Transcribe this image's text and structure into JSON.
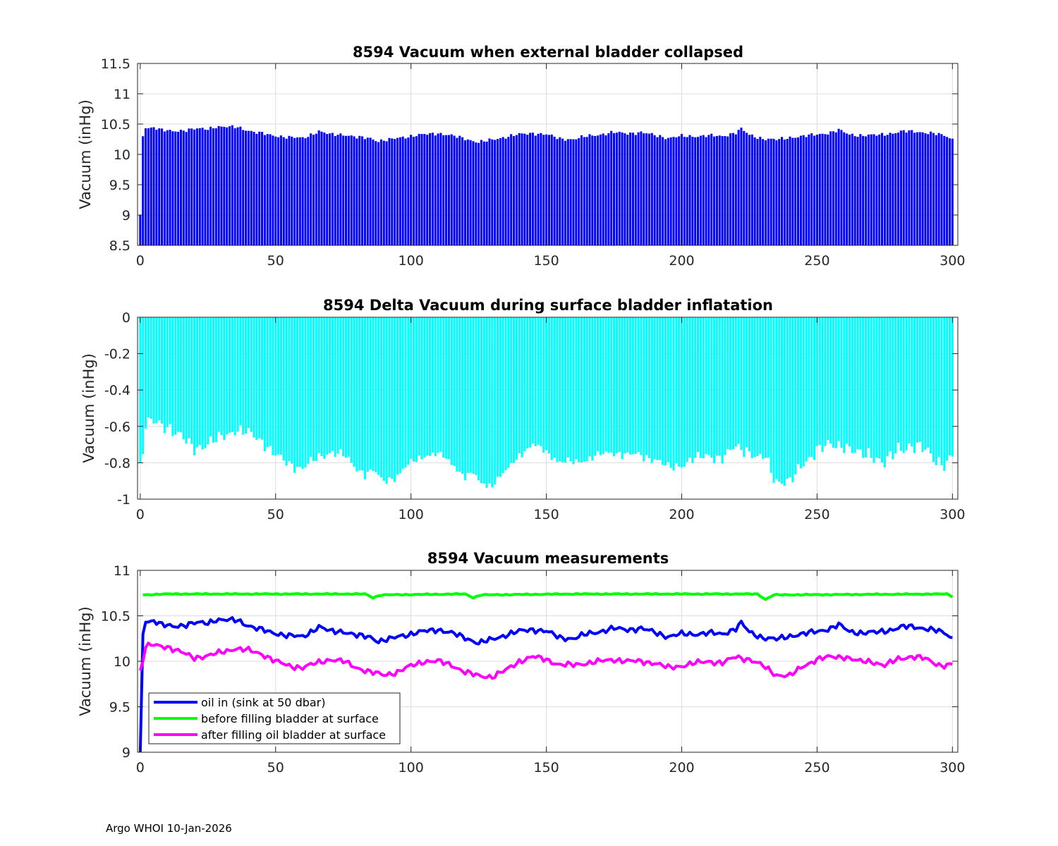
{
  "footer": "Argo WHOI 10-Jan-2026",
  "colors": {
    "bars_top": "#0000ff",
    "bars_mid": "#00ffff",
    "oil_in": "#0000ff",
    "before_fill": "#00ff00",
    "after_fill": "#ff00ff",
    "grid": "#dcdcdc",
    "axis": "#262626"
  },
  "chart_data": [
    {
      "type": "bar",
      "title": "8594 Vacuum when external bladder collapsed",
      "xlabel": "",
      "ylabel": "Vacuum (inHg)",
      "xlim": [
        -1,
        302
      ],
      "ylim": [
        8.5,
        11.5
      ],
      "xticks": [
        0,
        50,
        100,
        150,
        200,
        250,
        300
      ],
      "yticks": [
        8.5,
        9,
        9.5,
        10,
        10.5,
        11,
        11.5
      ],
      "ytick_labels": [
        "8.5",
        "9",
        "9.5",
        "10",
        "10.5",
        "11",
        "11.5"
      ],
      "grid": true,
      "n_points": 301,
      "series_key": "oil_in",
      "color_key": "bars_top"
    },
    {
      "type": "bar",
      "title": "8594 Delta Vacuum during surface bladder inflatation",
      "xlabel": "",
      "ylabel": "Vacuum (inHg)",
      "xlim": [
        -1,
        302
      ],
      "ylim": [
        -1,
        0
      ],
      "xticks": [
        0,
        50,
        100,
        150,
        200,
        250,
        300
      ],
      "yticks": [
        -1,
        -0.8,
        -0.6,
        -0.4,
        -0.2,
        0
      ],
      "ytick_labels": [
        "-1",
        "-0.8",
        "-0.6",
        "-0.4",
        "-0.2",
        "0"
      ],
      "grid": true,
      "n_points": 301,
      "values_note": "after filling minus before filling (approx. -0.55 to -0.95)",
      "color_key": "bars_mid"
    },
    {
      "type": "line",
      "title": "8594 Vacuum measurements",
      "xlabel": "",
      "ylabel": "Vacuum (inHg)",
      "xlim": [
        -1,
        302
      ],
      "ylim": [
        9,
        11
      ],
      "xticks": [
        0,
        50,
        100,
        150,
        200,
        250,
        300
      ],
      "yticks": [
        9,
        9.5,
        10,
        10.5,
        11
      ],
      "ytick_labels": [
        "9",
        "9.5",
        "10",
        "10.5",
        "11"
      ],
      "grid": true,
      "legend_position": "lower-left",
      "n_points": 301,
      "series": [
        {
          "name": "oil in (sink at 50 dbar)",
          "color_key": "oil_in",
          "anchors": [
            [
              0,
              9.0
            ],
            [
              1,
              10.3
            ],
            [
              2,
              10.43
            ],
            [
              5,
              10.45
            ],
            [
              8,
              10.4
            ],
            [
              12,
              10.38
            ],
            [
              16,
              10.4
            ],
            [
              20,
              10.42
            ],
            [
              25,
              10.42
            ],
            [
              28,
              10.46
            ],
            [
              33,
              10.45
            ],
            [
              36,
              10.45
            ],
            [
              38,
              10.42
            ],
            [
              42,
              10.37
            ],
            [
              48,
              10.32
            ],
            [
              55,
              10.28
            ],
            [
              60,
              10.27
            ],
            [
              66,
              10.38
            ],
            [
              70,
              10.33
            ],
            [
              75,
              10.33
            ],
            [
              80,
              10.28
            ],
            [
              85,
              10.27
            ],
            [
              88,
              10.22
            ],
            [
              92,
              10.24
            ],
            [
              96,
              10.28
            ],
            [
              100,
              10.3
            ],
            [
              105,
              10.33
            ],
            [
              110,
              10.35
            ],
            [
              115,
              10.31
            ],
            [
              120,
              10.26
            ],
            [
              125,
              10.2
            ],
            [
              130,
              10.24
            ],
            [
              135,
              10.29
            ],
            [
              140,
              10.33
            ],
            [
              145,
              10.35
            ],
            [
              150,
              10.33
            ],
            [
              155,
              10.26
            ],
            [
              160,
              10.25
            ],
            [
              165,
              10.3
            ],
            [
              170,
              10.33
            ],
            [
              175,
              10.36
            ],
            [
              180,
              10.35
            ],
            [
              185,
              10.36
            ],
            [
              190,
              10.32
            ],
            [
              195,
              10.27
            ],
            [
              200,
              10.3
            ],
            [
              205,
              10.3
            ],
            [
              210,
              10.31
            ],
            [
              215,
              10.3
            ],
            [
              220,
              10.36
            ],
            [
              222,
              10.42
            ],
            [
              225,
              10.32
            ],
            [
              230,
              10.26
            ],
            [
              235,
              10.24
            ],
            [
              240,
              10.28
            ],
            [
              245,
              10.3
            ],
            [
              250,
              10.33
            ],
            [
              255,
              10.36
            ],
            [
              258,
              10.4
            ],
            [
              262,
              10.33
            ],
            [
              267,
              10.31
            ],
            [
              272,
              10.32
            ],
            [
              278,
              10.35
            ],
            [
              282,
              10.38
            ],
            [
              286,
              10.38
            ],
            [
              290,
              10.36
            ],
            [
              295,
              10.33
            ],
            [
              298,
              10.3
            ],
            [
              301,
              10.22
            ]
          ],
          "amplitude": 0.03
        },
        {
          "name": "before filling bladder at surface",
          "color_key": "before_fill",
          "anchors": [
            [
              1,
              10.73
            ],
            [
              10,
              10.74
            ],
            [
              50,
              10.74
            ],
            [
              83,
              10.74
            ],
            [
              86,
              10.7
            ],
            [
              89,
              10.73
            ],
            [
              120,
              10.74
            ],
            [
              123,
              10.7
            ],
            [
              126,
              10.73
            ],
            [
              160,
              10.74
            ],
            [
              200,
              10.74
            ],
            [
              228,
              10.74
            ],
            [
              231,
              10.68
            ],
            [
              234,
              10.73
            ],
            [
              298,
              10.74
            ],
            [
              301,
              10.7
            ]
          ],
          "amplitude": 0.006
        },
        {
          "name": "after filling oil bladder at surface",
          "color_key": "after_fill",
          "anchors": [
            [
              0,
              9.9
            ],
            [
              1,
              10.0
            ],
            [
              2,
              10.15
            ],
            [
              4,
              10.18
            ],
            [
              10,
              10.16
            ],
            [
              15,
              10.1
            ],
            [
              20,
              10.04
            ],
            [
              25,
              10.06
            ],
            [
              30,
              10.1
            ],
            [
              35,
              10.14
            ],
            [
              40,
              10.12
            ],
            [
              45,
              10.08
            ],
            [
              50,
              10.0
            ],
            [
              55,
              9.95
            ],
            [
              60,
              9.93
            ],
            [
              65,
              9.98
            ],
            [
              70,
              10.02
            ],
            [
              75,
              10.0
            ],
            [
              80,
              9.93
            ],
            [
              85,
              9.88
            ],
            [
              90,
              9.85
            ],
            [
              95,
              9.88
            ],
            [
              100,
              9.95
            ],
            [
              105,
              10.0
            ],
            [
              110,
              10.0
            ],
            [
              115,
              9.96
            ],
            [
              120,
              9.88
            ],
            [
              125,
              9.84
            ],
            [
              130,
              9.83
            ],
            [
              135,
              9.9
            ],
            [
              140,
              10.0
            ],
            [
              145,
              10.05
            ],
            [
              150,
              10.02
            ],
            [
              155,
              9.96
            ],
            [
              160,
              9.96
            ],
            [
              165,
              9.98
            ],
            [
              170,
              10.0
            ],
            [
              175,
              10.02
            ],
            [
              180,
              10.0
            ],
            [
              185,
              10.0
            ],
            [
              190,
              9.98
            ],
            [
              195,
              9.93
            ],
            [
              200,
              9.95
            ],
            [
              205,
              9.98
            ],
            [
              210,
              10.0
            ],
            [
              215,
              9.98
            ],
            [
              220,
              10.05
            ],
            [
              225,
              10.02
            ],
            [
              230,
              9.95
            ],
            [
              235,
              9.85
            ],
            [
              240,
              9.84
            ],
            [
              245,
              9.95
            ],
            [
              250,
              10.02
            ],
            [
              255,
              10.05
            ],
            [
              260,
              10.05
            ],
            [
              265,
              10.0
            ],
            [
              270,
              10.0
            ],
            [
              275,
              9.95
            ],
            [
              280,
              10.03
            ],
            [
              285,
              10.05
            ],
            [
              290,
              10.03
            ],
            [
              295,
              9.96
            ],
            [
              298,
              9.95
            ],
            [
              301,
              9.98
            ]
          ],
          "amplitude": 0.03
        }
      ]
    }
  ]
}
